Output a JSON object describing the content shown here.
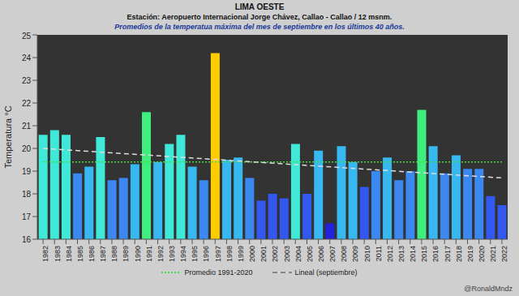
{
  "chart_data": {
    "type": "bar",
    "title": "LIMA OESTE",
    "subtitle": "Estación: Aeropuerto Internacional Jorge Chávez, Callao - Callao / 12 msnm.",
    "description": "Promedios de la temperatua máxima del mes de septiembre en los últimos 40 años.",
    "y_label": "Temperatura °C",
    "credit": "@RonaldMndz",
    "categories": [
      "1982",
      "1983",
      "1984",
      "1985",
      "1986",
      "1987",
      "1988",
      "1989",
      "1990",
      "1991",
      "1992",
      "1993",
      "1994",
      "1995",
      "1996",
      "1997",
      "1998",
      "1999",
      "2000",
      "2001",
      "2002",
      "2003",
      "2004",
      "2005",
      "2006",
      "2007",
      "2008",
      "2009",
      "2010",
      "2011",
      "2012",
      "2013",
      "2014",
      "2015",
      "2016",
      "2017",
      "2018",
      "2019",
      "2020",
      "2021",
      "2022"
    ],
    "values": [
      20.6,
      20.8,
      20.6,
      18.9,
      19.2,
      20.5,
      18.6,
      18.7,
      19.3,
      21.6,
      19.4,
      20.2,
      20.6,
      19.2,
      18.6,
      24.2,
      19.5,
      19.6,
      18.7,
      17.7,
      18.0,
      17.8,
      20.2,
      18.0,
      19.9,
      16.7,
      20.1,
      19.4,
      18.3,
      19.0,
      19.6,
      18.6,
      19.0,
      21.7,
      20.1,
      18.9,
      19.7,
      19.1,
      19.1,
      17.9,
      17.5
    ],
    "colors": [
      "#40e8d8",
      "#40e8d8",
      "#40e8d8",
      "#3a88f0",
      "#38b8f0",
      "#40e8d8",
      "#3a88f0",
      "#3a88f0",
      "#38b8f0",
      "#40ee80",
      "#38b8f0",
      "#40e8d8",
      "#40e8d8",
      "#38b8f0",
      "#3a88f0",
      "#ffcc00",
      "#38b8f0",
      "#38b8f0",
      "#3a88f0",
      "#3358f0",
      "#3358f0",
      "#3358f0",
      "#40e8d8",
      "#3358f0",
      "#38b8f0",
      "#2222dd",
      "#38b8f0",
      "#38b8f0",
      "#3358f0",
      "#3a88f0",
      "#38b8f0",
      "#3a88f0",
      "#3a88f0",
      "#40ee80",
      "#38b8f0",
      "#3a88f0",
      "#38b8f0",
      "#3a88f0",
      "#3a88f0",
      "#3358f0",
      "#3358f0"
    ],
    "lines": [
      {
        "name": "Promedio 1991-2020",
        "color": "#44dd44",
        "line_style": "dotted",
        "values": [
          19.4,
          19.4,
          19.4,
          19.4,
          19.4,
          19.4,
          19.4,
          19.4,
          19.4,
          19.4,
          19.4,
          19.4,
          19.4,
          19.4,
          19.4,
          19.4,
          19.4,
          19.4,
          19.4,
          19.4,
          19.4,
          19.4,
          19.4,
          19.4,
          19.4,
          19.4,
          19.4,
          19.4,
          19.4,
          19.4,
          19.4,
          19.4,
          19.4,
          19.4,
          19.4,
          19.4,
          19.4,
          19.4,
          19.4,
          19.4,
          19.4
        ]
      },
      {
        "name": "Lineal (septiembre)",
        "color": "#dddddd",
        "line_style": "dashed",
        "values": [
          20.0,
          null,
          null,
          null,
          null,
          null,
          null,
          null,
          null,
          null,
          null,
          null,
          null,
          null,
          null,
          null,
          null,
          null,
          null,
          null,
          null,
          null,
          null,
          null,
          null,
          null,
          null,
          null,
          null,
          null,
          null,
          null,
          null,
          null,
          null,
          null,
          null,
          null,
          null,
          null,
          18.7
        ]
      }
    ],
    "ylim": [
      16,
      25
    ],
    "yticks": [
      16,
      17,
      18,
      19,
      20,
      21,
      22,
      23,
      24,
      25
    ],
    "grid": false,
    "legend": "bottom"
  }
}
